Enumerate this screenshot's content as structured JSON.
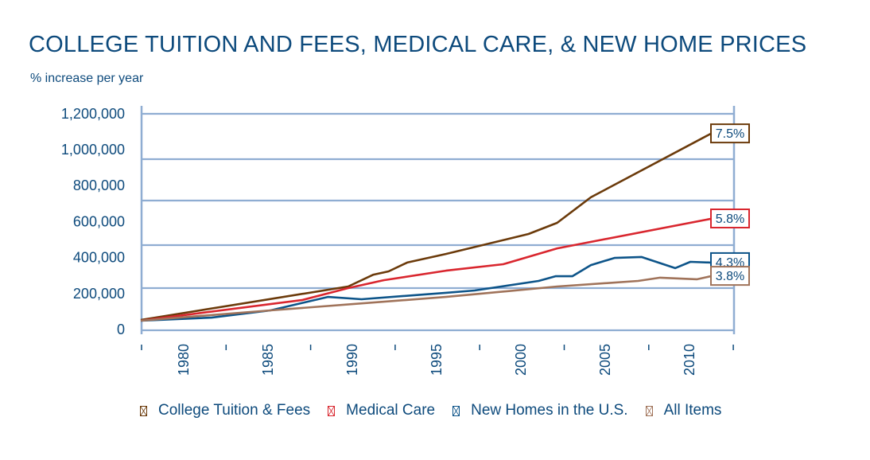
{
  "chart_data": {
    "type": "line",
    "title": "COLLEGE TUITION AND FEES, MEDICAL CARE, & NEW HOME PRICES",
    "subtitle": "% increase per year",
    "xlabel": "",
    "ylabel": "",
    "xlim": [
      1977.5,
      2012.6
    ],
    "ylim": [
      0,
      1200000
    ],
    "yticks": [
      0,
      200000,
      400000,
      600000,
      800000,
      1000000,
      1200000
    ],
    "ytick_labels": [
      "0",
      "200,000",
      "400,000",
      "600,000",
      "800,000",
      "1,000,000",
      "1,200,000"
    ],
    "xticks": [
      1980,
      1985,
      1990,
      1995,
      2000,
      2005,
      2010
    ],
    "xtick_labels": [
      "1980",
      "1985",
      "1990",
      "1995",
      "2000",
      "2005",
      "2010"
    ],
    "grid": true,
    "legend_position": "bottom",
    "series": [
      {
        "name": "College Tuition & Fees",
        "color": "#6b3a0a",
        "end_label": "7.5%",
        "x": [
          1977.5,
          1989.8,
          1991.3,
          1992.2,
          1993.3,
          1995.6,
          2000.5,
          2002.2,
          2004.2,
          2011.3
        ],
        "y": [
          53000,
          239000,
          305000,
          323000,
          372000,
          420000,
          531000,
          593000,
          735000,
          1088000
        ]
      },
      {
        "name": "Medical Care",
        "color": "#d9262e",
        "end_label": "5.8%",
        "x": [
          1977.5,
          1987.1,
          1989.8,
          1991.9,
          1995.6,
          1999.0,
          2002.2,
          2011.3
        ],
        "y": [
          49000,
          164000,
          230000,
          274000,
          327000,
          363000,
          451000,
          615000
        ]
      },
      {
        "name": "New Homes in the U.S.",
        "color": "#0d5489",
        "end_label": "4.3%",
        "x": [
          1977.5,
          1981.7,
          1985.2,
          1988.6,
          1990.6,
          1995.6,
          1997.3,
          2001.1,
          2002.1,
          2003.1,
          2004.2,
          2005.6,
          2007.2,
          2009.2,
          2010.1,
          2011.3
        ],
        "y": [
          49000,
          66000,
          106000,
          181000,
          168000,
          204000,
          217000,
          270000,
          296000,
          296000,
          358000,
          398000,
          403000,
          341000,
          376000,
          372000
        ]
      },
      {
        "name": "All Items",
        "color": "#a0735a",
        "end_label": "3.8%",
        "x": [
          1977.5,
          1985.2,
          1995.6,
          2002.2,
          2007.0,
          2008.3,
          2010.5,
          2011.3
        ],
        "y": [
          49000,
          106000,
          181000,
          239000,
          270000,
          288000,
          279000,
          296000
        ]
      }
    ]
  },
  "colors": {
    "axis": "#8fadd2",
    "text": "#0d4a7c"
  }
}
